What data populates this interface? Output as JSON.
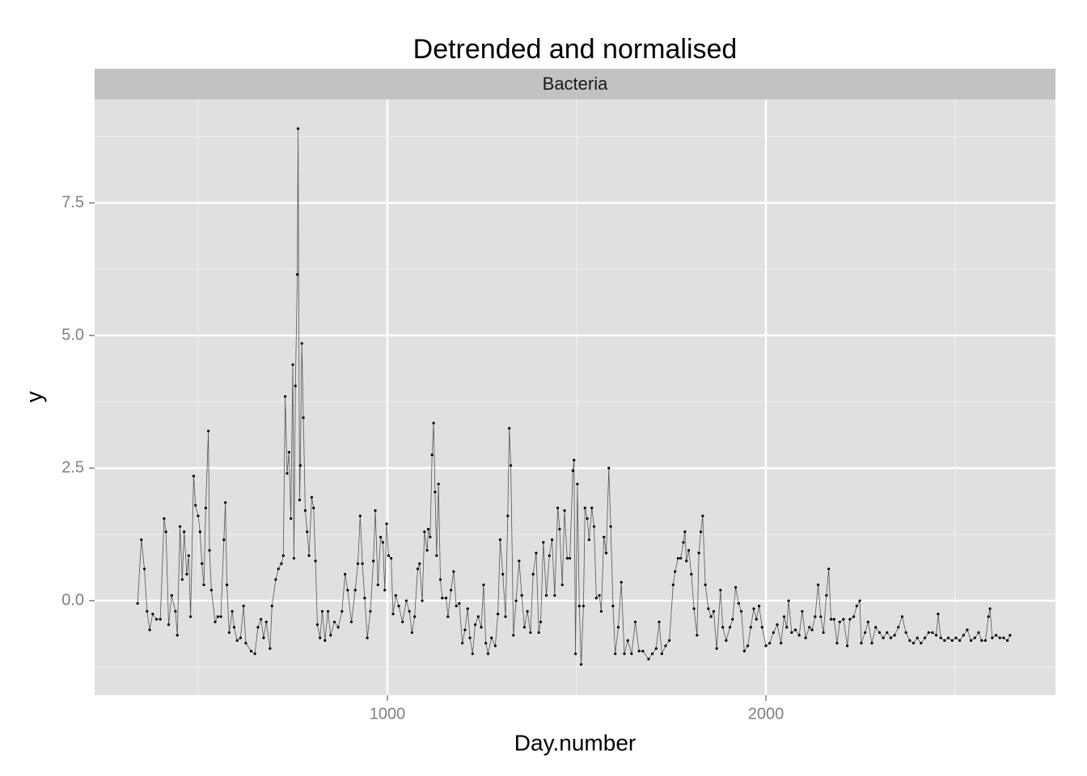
{
  "chart_data": {
    "type": "line",
    "title": "Detrended and normalised",
    "facet": "Bacteria",
    "xlabel": "Day.number",
    "ylabel": "y",
    "xlim": [
      226.5,
      2765
    ],
    "ylim": [
      -1.78,
      9.45
    ],
    "xticks": [
      1000,
      2000
    ],
    "yticks": [
      0.0,
      2.5,
      5.0,
      7.5
    ],
    "yticklabels": [
      "0.0",
      "2.5",
      "5.0",
      "7.5"
    ],
    "x_minor_grid": [
      500,
      1500,
      2500
    ],
    "y_minor_grid": [
      -1.25,
      1.25,
      3.75,
      6.25,
      8.75
    ],
    "grid": true,
    "color": "#000000",
    "line_color": "#555555",
    "x": [
      340,
      350,
      358,
      365,
      372,
      380,
      390,
      400,
      410,
      415,
      422,
      430,
      440,
      445,
      452,
      458,
      463,
      470,
      475,
      480,
      488,
      493,
      500,
      505,
      510,
      515,
      520,
      527,
      530,
      535,
      545,
      552,
      560,
      568,
      572,
      576,
      582,
      590,
      595,
      603,
      612,
      620,
      626,
      640,
      650,
      658,
      666,
      673,
      680,
      690,
      695,
      705,
      712,
      720,
      725,
      730,
      735,
      740,
      745,
      750,
      753,
      757,
      762,
      764,
      768,
      770,
      774,
      778,
      783,
      788,
      793,
      800,
      805,
      810,
      815,
      822,
      828,
      835,
      843,
      850,
      860,
      870,
      880,
      888,
      895,
      905,
      915,
      922,
      928,
      934,
      940,
      947,
      955,
      963,
      968,
      975,
      982,
      988,
      993,
      998,
      1003,
      1010,
      1015,
      1022,
      1030,
      1040,
      1050,
      1058,
      1065,
      1072,
      1080,
      1085,
      1092,
      1098,
      1105,
      1108,
      1113,
      1118,
      1122,
      1126,
      1130,
      1135,
      1140,
      1145,
      1155,
      1160,
      1168,
      1175,
      1182,
      1190,
      1198,
      1205,
      1212,
      1218,
      1225,
      1232,
      1240,
      1248,
      1254,
      1260,
      1266,
      1275,
      1285,
      1292,
      1298,
      1305,
      1312,
      1318,
      1322,
      1326,
      1333,
      1340,
      1348,
      1355,
      1362,
      1370,
      1378,
      1385,
      1393,
      1400,
      1405,
      1412,
      1420,
      1428,
      1435,
      1442,
      1450,
      1455,
      1462,
      1468,
      1475,
      1482,
      1490,
      1493,
      1497,
      1502,
      1507,
      1512,
      1518,
      1522,
      1528,
      1533,
      1540,
      1546,
      1552,
      1560,
      1565,
      1572,
      1578,
      1585,
      1590,
      1596,
      1602,
      1610,
      1618,
      1626,
      1635,
      1645,
      1655,
      1665,
      1675,
      1690,
      1700,
      1710,
      1718,
      1725,
      1735,
      1745,
      1755,
      1760,
      1768,
      1775,
      1782,
      1786,
      1790,
      1796,
      1803,
      1810,
      1818,
      1823,
      1828,
      1833,
      1840,
      1848,
      1855,
      1862,
      1870,
      1880,
      1886,
      1895,
      1905,
      1912,
      1920,
      1928,
      1935,
      1943,
      1952,
      1960,
      1968,
      1975,
      1982,
      1990,
      2000,
      2010,
      2020,
      2030,
      2040,
      2048,
      2055,
      2060,
      2068,
      2078,
      2088,
      2096,
      2105,
      2115,
      2122,
      2130,
      2138,
      2145,
      2152,
      2160,
      2166,
      2172,
      2180,
      2188,
      2195,
      2205,
      2215,
      2222,
      2232,
      2240,
      2248,
      2252,
      2262,
      2270,
      2280,
      2290,
      2300,
      2310,
      2320,
      2330,
      2340,
      2350,
      2360,
      2370,
      2380,
      2390,
      2400,
      2410,
      2420,
      2430,
      2440,
      2450,
      2455,
      2462,
      2472,
      2482,
      2492,
      2502,
      2512,
      2522,
      2532,
      2542,
      2552,
      2562,
      2570,
      2580,
      2588,
      2592,
      2598,
      2608,
      2618,
      2628,
      2638,
      2645
    ],
    "values": [
      -0.05,
      1.15,
      0.6,
      -0.2,
      -0.55,
      -0.25,
      -0.35,
      -0.35,
      1.55,
      1.3,
      -0.45,
      0.1,
      -0.2,
      -0.65,
      1.4,
      0.4,
      1.3,
      0.5,
      0.85,
      -0.3,
      2.35,
      1.8,
      1.6,
      1.3,
      0.7,
      0.3,
      1.75,
      3.2,
      0.95,
      0.2,
      -0.4,
      -0.3,
      -0.3,
      1.15,
      1.85,
      0.3,
      -0.6,
      -0.2,
      -0.5,
      -0.75,
      -0.7,
      -0.1,
      -0.8,
      -0.95,
      -1.0,
      -0.5,
      -0.35,
      -0.7,
      -0.4,
      -0.9,
      -0.1,
      0.4,
      0.6,
      0.7,
      0.85,
      3.85,
      2.4,
      2.8,
      1.55,
      4.45,
      0.8,
      4.05,
      6.15,
      8.9,
      1.9,
      2.55,
      4.85,
      3.45,
      1.7,
      1.3,
      0.85,
      1.95,
      1.75,
      0.75,
      -0.45,
      -0.7,
      -0.2,
      -0.75,
      -0.2,
      -0.65,
      -0.4,
      -0.5,
      -0.2,
      0.5,
      0.2,
      -0.4,
      0.2,
      0.7,
      1.6,
      0.7,
      0.05,
      -0.7,
      -0.2,
      0.75,
      1.7,
      0.3,
      1.2,
      1.1,
      0.2,
      1.45,
      0.85,
      0.8,
      -0.25,
      0.1,
      -0.1,
      -0.4,
      0.0,
      -0.2,
      -0.6,
      -0.3,
      0.6,
      0.7,
      0.0,
      1.3,
      0.95,
      1.35,
      1.2,
      2.75,
      3.35,
      2.05,
      0.85,
      2.2,
      0.4,
      0.05,
      0.05,
      -0.3,
      0.2,
      0.55,
      -0.1,
      -0.05,
      -0.8,
      -0.55,
      -0.15,
      -0.7,
      -1.0,
      -0.45,
      -0.3,
      -0.5,
      0.3,
      -0.8,
      -1.0,
      -0.7,
      -0.85,
      -0.25,
      1.15,
      0.5,
      -0.3,
      1.6,
      3.25,
      2.55,
      -0.65,
      0.0,
      0.75,
      0.1,
      -0.5,
      -0.2,
      -0.6,
      0.5,
      0.9,
      -0.6,
      -0.4,
      1.1,
      0.1,
      0.85,
      1.15,
      0.1,
      1.75,
      1.35,
      0.3,
      1.7,
      0.8,
      0.8,
      2.45,
      2.65,
      -1.0,
      2.2,
      -0.1,
      -1.2,
      -0.1,
      1.75,
      1.55,
      1.15,
      1.75,
      1.4,
      0.05,
      0.1,
      -0.2,
      1.2,
      0.9,
      2.5,
      1.4,
      -0.1,
      -1.0,
      -0.5,
      0.35,
      -1.0,
      -0.75,
      -1.0,
      -0.4,
      -0.95,
      -0.95,
      -1.1,
      -1.0,
      -0.9,
      -0.4,
      -1.0,
      -0.85,
      -0.75,
      0.3,
      0.55,
      0.8,
      0.8,
      1.1,
      1.3,
      0.75,
      0.95,
      0.5,
      -0.15,
      -0.65,
      0.9,
      1.3,
      1.6,
      0.3,
      -0.15,
      -0.3,
      -0.2,
      -0.9,
      0.2,
      -0.5,
      -0.75,
      -0.5,
      -0.35,
      0.25,
      -0.05,
      -0.2,
      -0.95,
      -0.85,
      -0.5,
      -0.15,
      -0.35,
      -0.1,
      -0.5,
      -0.85,
      -0.8,
      -0.6,
      -0.45,
      -0.8,
      -0.3,
      -0.5,
      0.0,
      -0.6,
      -0.55,
      -0.65,
      -0.2,
      -0.7,
      -0.5,
      -0.55,
      -0.3,
      0.3,
      -0.3,
      -0.6,
      0.1,
      0.6,
      -0.35,
      -0.35,
      -0.8,
      -0.4,
      -0.35,
      -0.85,
      -0.35,
      -0.3,
      -0.1,
      0.0,
      -0.8,
      -0.6,
      -0.4,
      -0.8,
      -0.5,
      -0.6,
      -0.7,
      -0.6,
      -0.7,
      -0.65,
      -0.5,
      -0.3,
      -0.6,
      -0.75,
      -0.8,
      -0.7,
      -0.8,
      -0.7,
      -0.6,
      -0.6,
      -0.65,
      -0.25,
      -0.7,
      -0.75,
      -0.7,
      -0.75,
      -0.7,
      -0.75,
      -0.65,
      -0.55,
      -0.75,
      -0.7,
      -0.6,
      -0.75,
      -0.75,
      -0.3,
      -0.15,
      -0.7,
      -0.65,
      -0.7,
      -0.7,
      -0.75,
      -0.65
    ]
  }
}
